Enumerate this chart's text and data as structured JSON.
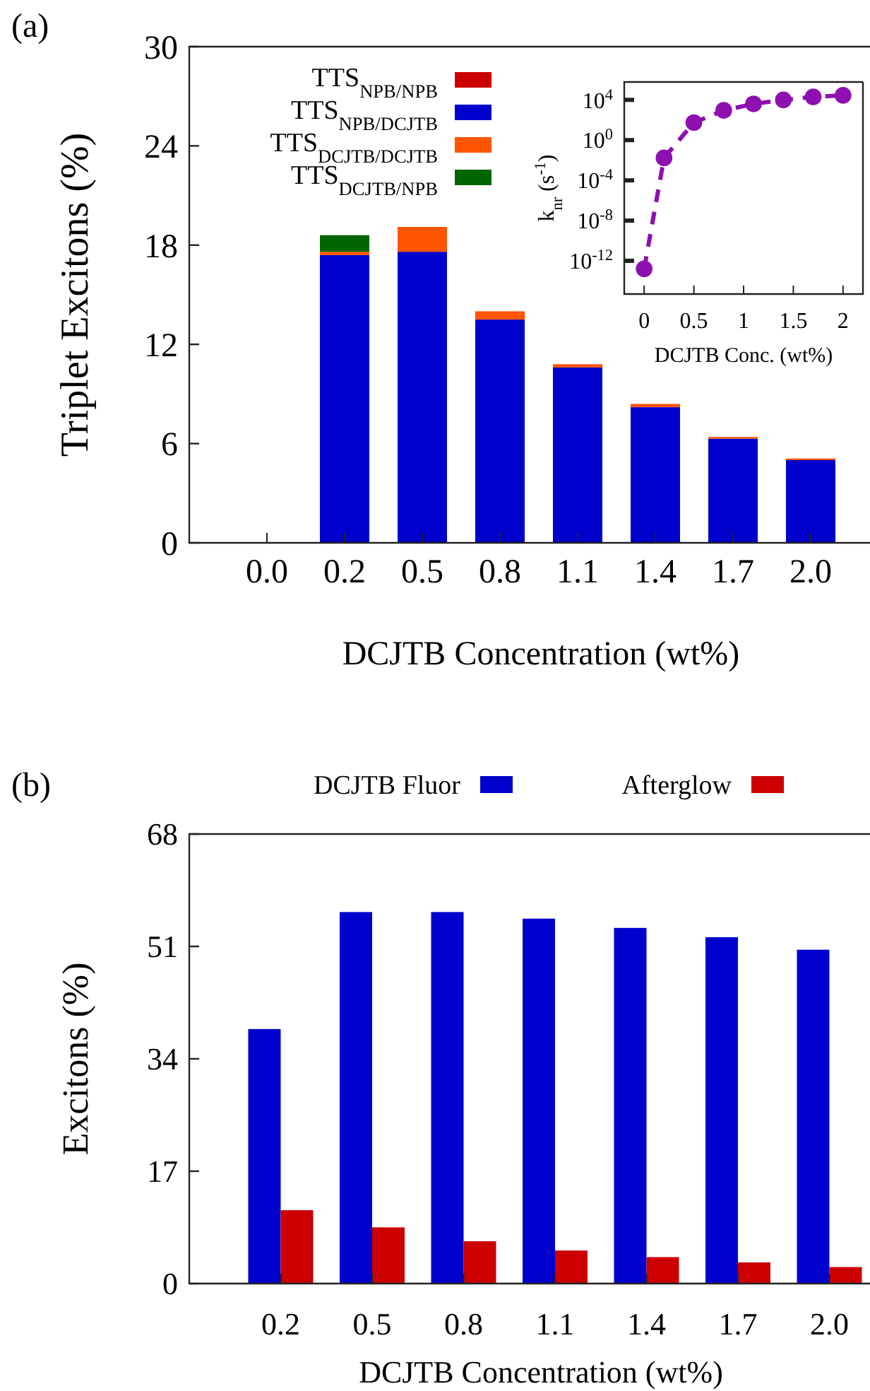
{
  "chart_data": [
    {
      "type": "bar",
      "title": "(a)",
      "xlabel": "DCJTB Concentration (wt%)",
      "ylabel": "Triplet Excitons (%)",
      "categories": [
        "0.0",
        "0.2",
        "0.5",
        "0.8",
        "1.1",
        "1.4",
        "1.7",
        "2.0"
      ],
      "stacked": true,
      "ylim": [
        0,
        30
      ],
      "yticks": [
        0,
        6,
        12,
        18,
        24,
        30
      ],
      "legend": "top left",
      "series": [
        {
          "name": "TTS$_{NPB/NPB}$",
          "color": "#cc0000",
          "values": [
            0,
            0,
            0,
            0,
            0,
            0,
            0,
            0
          ]
        },
        {
          "name": "TTS$_{NPB/DCJTB}$",
          "color": "#0000cc",
          "values": [
            0,
            17.4,
            17.6,
            13.5,
            10.6,
            8.2,
            6.3,
            5.0
          ]
        },
        {
          "name": "TTS$_{DCJTB/DCJTB}$",
          "color": "#ff5500",
          "values": [
            0,
            0.2,
            1.5,
            0.5,
            0.2,
            0.2,
            0.1,
            0.1
          ]
        },
        {
          "name": "TTS$_{DCJTB/NPB}$",
          "color": "#006600",
          "values": [
            0,
            1.0,
            0,
            0,
            0,
            0,
            0,
            0
          ]
        }
      ]
    },
    {
      "type": "line",
      "xlabel": "DCJTB Conc. (wt%)",
      "ylabel": "k$_{nr}$ (s$^{-1}$)",
      "log": "y",
      "marker": "circle",
      "line_style": "dashed",
      "x": [
        0,
        0.2,
        0.5,
        0.8,
        1.1,
        1.4,
        1.7,
        2.0
      ],
      "xlim": [
        -0.2,
        2.2
      ],
      "xticks": [
        0,
        {
          "value": 0.5,
          "label": "0.5"
        },
        1,
        {
          "value": 1.5,
          "label": "1.5"
        },
        2
      ],
      "ylim": [
        5e-16,
        600000.0
      ],
      "yticks": [
        {
          "value": 1e-12,
          "label": "10$^{-12}$"
        },
        {
          "value": 1e-08,
          "label": "10$^{-8}$"
        },
        {
          "value": 0.0001,
          "label": "10$^{-4}$"
        },
        {
          "value": 1,
          "label": "10$^{0}$"
        },
        {
          "value": 10000,
          "label": "10$^{4}$"
        }
      ],
      "series": [
        {
          "color": "#8e10b0",
          "values": [
            1.6e-13,
            0.017,
            55,
            900,
            4000,
            10000,
            20000,
            28000
          ]
        }
      ]
    },
    {
      "type": "bar",
      "title": "(b)",
      "xlabel": "DCJTB Concentration (wt%)",
      "ylabel": "Excitons (%)",
      "categories": [
        "0.2",
        "0.5",
        "0.8",
        "1.1",
        "1.4",
        "1.7",
        "2.0"
      ],
      "ylim": [
        0,
        68
      ],
      "yticks": [
        0,
        17,
        34,
        51,
        68
      ],
      "legend": "top",
      "series": [
        {
          "name": "DCJTB Fluor",
          "color": "#0000cc",
          "values": [
            38.5,
            56.2,
            56.2,
            55.2,
            53.8,
            52.4,
            50.5
          ]
        },
        {
          "name": "Afterglow",
          "color": "#cc0000",
          "values": [
            11.1,
            8.5,
            6.4,
            5.0,
            4.0,
            3.2,
            2.5
          ]
        }
      ]
    }
  ]
}
